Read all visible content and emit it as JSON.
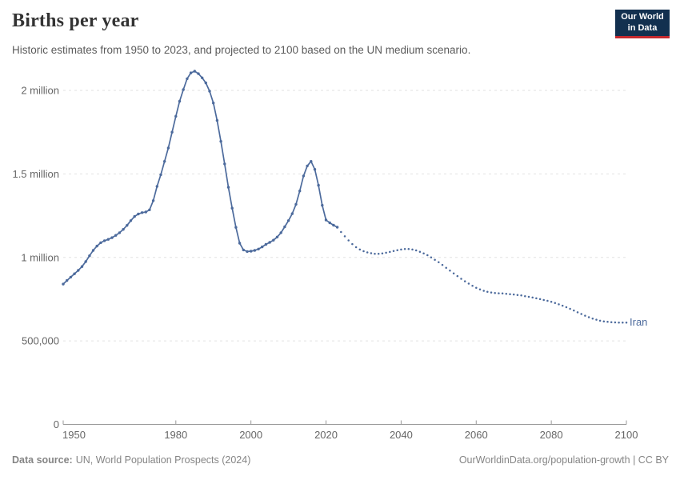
{
  "header": {
    "title": "Births per year",
    "subtitle": "Historic estimates from 1950 to 2023, and projected to 2100 based on the UN medium scenario."
  },
  "logo": {
    "line1": "Our World",
    "line2": "in Data"
  },
  "colors": {
    "line": "#4c6a9c",
    "grid": "#e2e2e2",
    "axis": "#999999",
    "logo_bg": "#12304f",
    "logo_accent": "#c5292e"
  },
  "chart_data": {
    "type": "line",
    "title": "Births per year",
    "subtitle": "Historic estimates from 1950 to 2023, and projected to 2100 based on the UN medium scenario.",
    "entity_label": "Iran",
    "grid": true,
    "x_axis": {
      "range": [
        1950,
        2100
      ],
      "ticks": [
        {
          "year": 1950,
          "label": "1950"
        },
        {
          "year": 1980,
          "label": "1980"
        },
        {
          "year": 2000,
          "label": "2000"
        },
        {
          "year": 2020,
          "label": "2020"
        },
        {
          "year": 2040,
          "label": "2040"
        },
        {
          "year": 2060,
          "label": "2060"
        },
        {
          "year": 2080,
          "label": "2080"
        },
        {
          "year": 2100,
          "label": "2100"
        }
      ]
    },
    "y_axis": {
      "range": [
        0,
        2000000
      ],
      "ticks": [
        {
          "value": 0,
          "label": "0"
        },
        {
          "value": 500000,
          "label": "500,000"
        },
        {
          "value": 1000000,
          "label": "1 million"
        },
        {
          "value": 1500000,
          "label": "1.5 million"
        },
        {
          "value": 2000000,
          "label": "2 million"
        }
      ]
    },
    "series": [
      {
        "name": "Iran — historic estimates",
        "style": "solid",
        "points": [
          [
            1950,
            840000
          ],
          [
            1951,
            862000
          ],
          [
            1952,
            882000
          ],
          [
            1953,
            902000
          ],
          [
            1954,
            922000
          ],
          [
            1955,
            945000
          ],
          [
            1956,
            975000
          ],
          [
            1957,
            1010000
          ],
          [
            1958,
            1042000
          ],
          [
            1959,
            1068000
          ],
          [
            1960,
            1088000
          ],
          [
            1961,
            1100000
          ],
          [
            1962,
            1108000
          ],
          [
            1963,
            1118000
          ],
          [
            1964,
            1132000
          ],
          [
            1965,
            1148000
          ],
          [
            1966,
            1168000
          ],
          [
            1967,
            1192000
          ],
          [
            1968,
            1220000
          ],
          [
            1969,
            1245000
          ],
          [
            1970,
            1260000
          ],
          [
            1971,
            1268000
          ],
          [
            1972,
            1272000
          ],
          [
            1973,
            1285000
          ],
          [
            1974,
            1340000
          ],
          [
            1975,
            1425000
          ],
          [
            1976,
            1495000
          ],
          [
            1977,
            1575000
          ],
          [
            1978,
            1655000
          ],
          [
            1979,
            1750000
          ],
          [
            1980,
            1845000
          ],
          [
            1981,
            1935000
          ],
          [
            1982,
            2005000
          ],
          [
            1983,
            2070000
          ],
          [
            1984,
            2105000
          ],
          [
            1985,
            2115000
          ],
          [
            1986,
            2100000
          ],
          [
            1987,
            2075000
          ],
          [
            1988,
            2045000
          ],
          [
            1989,
            1995000
          ],
          [
            1990,
            1925000
          ],
          [
            1991,
            1820000
          ],
          [
            1992,
            1695000
          ],
          [
            1993,
            1560000
          ],
          [
            1994,
            1420000
          ],
          [
            1995,
            1295000
          ],
          [
            1996,
            1180000
          ],
          [
            1997,
            1085000
          ],
          [
            1998,
            1045000
          ],
          [
            1999,
            1035000
          ],
          [
            2000,
            1037000
          ],
          [
            2001,
            1042000
          ],
          [
            2002,
            1050000
          ],
          [
            2003,
            1063000
          ],
          [
            2004,
            1078000
          ],
          [
            2005,
            1090000
          ],
          [
            2006,
            1103000
          ],
          [
            2007,
            1122000
          ],
          [
            2008,
            1148000
          ],
          [
            2009,
            1183000
          ],
          [
            2010,
            1220000
          ],
          [
            2011,
            1262000
          ],
          [
            2012,
            1318000
          ],
          [
            2013,
            1398000
          ],
          [
            2014,
            1488000
          ],
          [
            2015,
            1548000
          ],
          [
            2016,
            1575000
          ],
          [
            2017,
            1527000
          ],
          [
            2018,
            1432000
          ],
          [
            2019,
            1312000
          ],
          [
            2020,
            1224000
          ],
          [
            2021,
            1207000
          ],
          [
            2022,
            1193000
          ],
          [
            2023,
            1181000
          ]
        ]
      },
      {
        "name": "Iran — UN medium scenario projection",
        "style": "dotted",
        "points": [
          [
            2024,
            1152000
          ],
          [
            2025,
            1126000
          ],
          [
            2026,
            1102000
          ],
          [
            2027,
            1080000
          ],
          [
            2028,
            1061000
          ],
          [
            2029,
            1047000
          ],
          [
            2030,
            1037000
          ],
          [
            2031,
            1030000
          ],
          [
            2032,
            1025000
          ],
          [
            2033,
            1022000
          ],
          [
            2034,
            1022000
          ],
          [
            2035,
            1024000
          ],
          [
            2036,
            1028000
          ],
          [
            2037,
            1033000
          ],
          [
            2038,
            1038000
          ],
          [
            2039,
            1043000
          ],
          [
            2040,
            1047000
          ],
          [
            2041,
            1050000
          ],
          [
            2042,
            1050000
          ],
          [
            2043,
            1047000
          ],
          [
            2044,
            1042000
          ],
          [
            2045,
            1034000
          ],
          [
            2046,
            1024000
          ],
          [
            2047,
            1013000
          ],
          [
            2048,
            1000000
          ],
          [
            2049,
            986000
          ],
          [
            2050,
            971000
          ],
          [
            2051,
            955000
          ],
          [
            2052,
            938000
          ],
          [
            2053,
            921000
          ],
          [
            2054,
            904000
          ],
          [
            2055,
            888000
          ],
          [
            2056,
            872000
          ],
          [
            2057,
            857000
          ],
          [
            2058,
            843000
          ],
          [
            2059,
            830000
          ],
          [
            2060,
            818000
          ],
          [
            2061,
            808000
          ],
          [
            2062,
            800000
          ],
          [
            2063,
            794000
          ],
          [
            2064,
            790000
          ],
          [
            2065,
            787000
          ],
          [
            2066,
            785000
          ],
          [
            2067,
            784000
          ],
          [
            2068,
            782000
          ],
          [
            2069,
            780000
          ],
          [
            2070,
            778000
          ],
          [
            2071,
            775000
          ],
          [
            2072,
            772000
          ],
          [
            2073,
            768000
          ],
          [
            2074,
            764000
          ],
          [
            2075,
            760000
          ],
          [
            2076,
            755000
          ],
          [
            2077,
            750000
          ],
          [
            2078,
            745000
          ],
          [
            2079,
            740000
          ],
          [
            2080,
            734000
          ],
          [
            2081,
            727000
          ],
          [
            2082,
            719000
          ],
          [
            2083,
            711000
          ],
          [
            2084,
            702000
          ],
          [
            2085,
            692000
          ],
          [
            2086,
            682000
          ],
          [
            2087,
            671000
          ],
          [
            2088,
            661000
          ],
          [
            2089,
            651000
          ],
          [
            2090,
            642000
          ],
          [
            2091,
            634000
          ],
          [
            2092,
            627000
          ],
          [
            2093,
            621000
          ],
          [
            2094,
            617000
          ],
          [
            2095,
            614000
          ],
          [
            2096,
            612000
          ],
          [
            2097,
            611000
          ],
          [
            2098,
            610000
          ],
          [
            2099,
            610000
          ],
          [
            2100,
            610000
          ]
        ]
      }
    ]
  },
  "footer": {
    "datasource_label": "Data source:",
    "datasource_value": "UN, World Population Prospects (2024)",
    "right": "OurWorldinData.org/population-growth | CC BY"
  }
}
